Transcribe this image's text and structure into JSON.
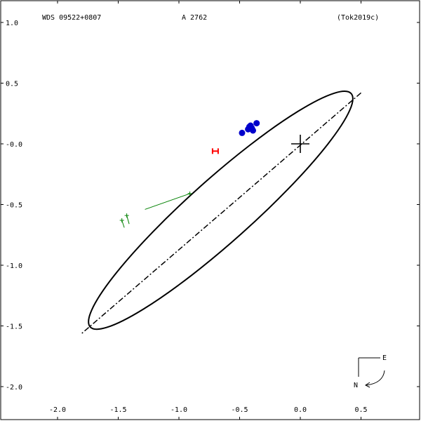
{
  "header": {
    "wds_id": "WDS 09522+0807",
    "discoverer": "A  2762",
    "reference": "(Tok2019c)"
  },
  "chart_data": {
    "type": "scatter",
    "title": "",
    "xlabel": "",
    "ylabel": "",
    "xlim": [
      -2.2,
      0.95
    ],
    "ylim": [
      -2.25,
      1.1
    ],
    "x_ticks": [
      {
        "value": -2.0,
        "label": "-2.0"
      },
      {
        "value": -1.5,
        "label": "-1.5"
      },
      {
        "value": -1.0,
        "label": "-1.0"
      },
      {
        "value": -0.5,
        "label": "-0.5"
      },
      {
        "value": 0.0,
        "label": "0.0"
      },
      {
        "value": 0.5,
        "label": "0.5"
      }
    ],
    "y_ticks": [
      {
        "value": 1.0,
        "label": "1.0"
      },
      {
        "value": 0.5,
        "label": "0.5"
      },
      {
        "value": 0.0,
        "label": "-0.0"
      },
      {
        "value": -0.5,
        "label": "-0.5"
      },
      {
        "value": -1.0,
        "label": "-1.0"
      },
      {
        "value": -1.5,
        "label": "-1.5"
      },
      {
        "value": -2.0,
        "label": "-2.0"
      }
    ],
    "primary": {
      "x": 0.0,
      "y": 0.0
    },
    "orbit": {
      "center": [
        -0.656,
        -0.547
      ],
      "semi_major": 1.442,
      "semi_minor": 0.258,
      "angle_deg": 41.8,
      "color": "#000000"
    },
    "line_of_nodes": [
      [
        0.5,
        0.42
      ],
      [
        -1.81,
        -1.57
      ]
    ],
    "observations": {
      "color": "#0000cc",
      "points": [
        {
          "x": -0.48,
          "y": 0.09
        },
        {
          "x": -0.43,
          "y": 0.12
        },
        {
          "x": -0.42,
          "y": 0.14
        },
        {
          "x": -0.41,
          "y": 0.15
        },
        {
          "x": -0.4,
          "y": 0.13
        },
        {
          "x": -0.39,
          "y": 0.11
        },
        {
          "x": -0.36,
          "y": 0.17
        }
      ]
    },
    "micrometer": {
      "color": "#008000",
      "points": [
        {
          "x": -0.91,
          "y": -0.41,
          "orbit_x": -1.28,
          "orbit_y": -0.54
        },
        {
          "x": -1.43,
          "y": -0.59,
          "orbit_x": -1.41,
          "orbit_y": -0.66
        },
        {
          "x": -1.47,
          "y": -0.63,
          "orbit_x": -1.45,
          "orbit_y": -0.69
        }
      ]
    },
    "predicted": {
      "x": -0.7,
      "y": -0.06,
      "color": "#ff0000"
    },
    "compass": {
      "east": "E",
      "north": "N"
    }
  }
}
